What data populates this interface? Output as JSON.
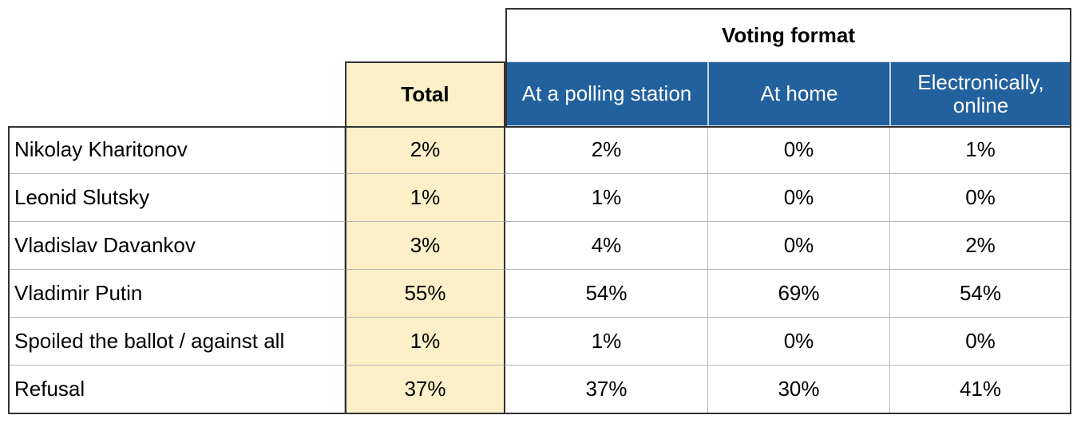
{
  "table": {
    "group_header": "Voting format",
    "columns": [
      "Total",
      "At a polling station",
      "At home",
      "Electronically, online"
    ],
    "rows": [
      {
        "label": "Nikolay Kharitonov",
        "values": [
          "2%",
          "2%",
          "0%",
          "1%"
        ]
      },
      {
        "label": "Leonid Slutsky",
        "values": [
          "1%",
          "1%",
          "0%",
          "0%"
        ]
      },
      {
        "label": "Vladislav Davankov",
        "values": [
          "3%",
          "4%",
          "0%",
          "2%"
        ]
      },
      {
        "label": "Vladimir Putin",
        "values": [
          "55%",
          "54%",
          "69%",
          "54%"
        ]
      },
      {
        "label": "Spoiled the ballot / against all",
        "values": [
          "1%",
          "1%",
          "0%",
          "0%"
        ]
      },
      {
        "label": "Refusal",
        "values": [
          "37%",
          "37%",
          "30%",
          "41%"
        ]
      }
    ]
  }
}
